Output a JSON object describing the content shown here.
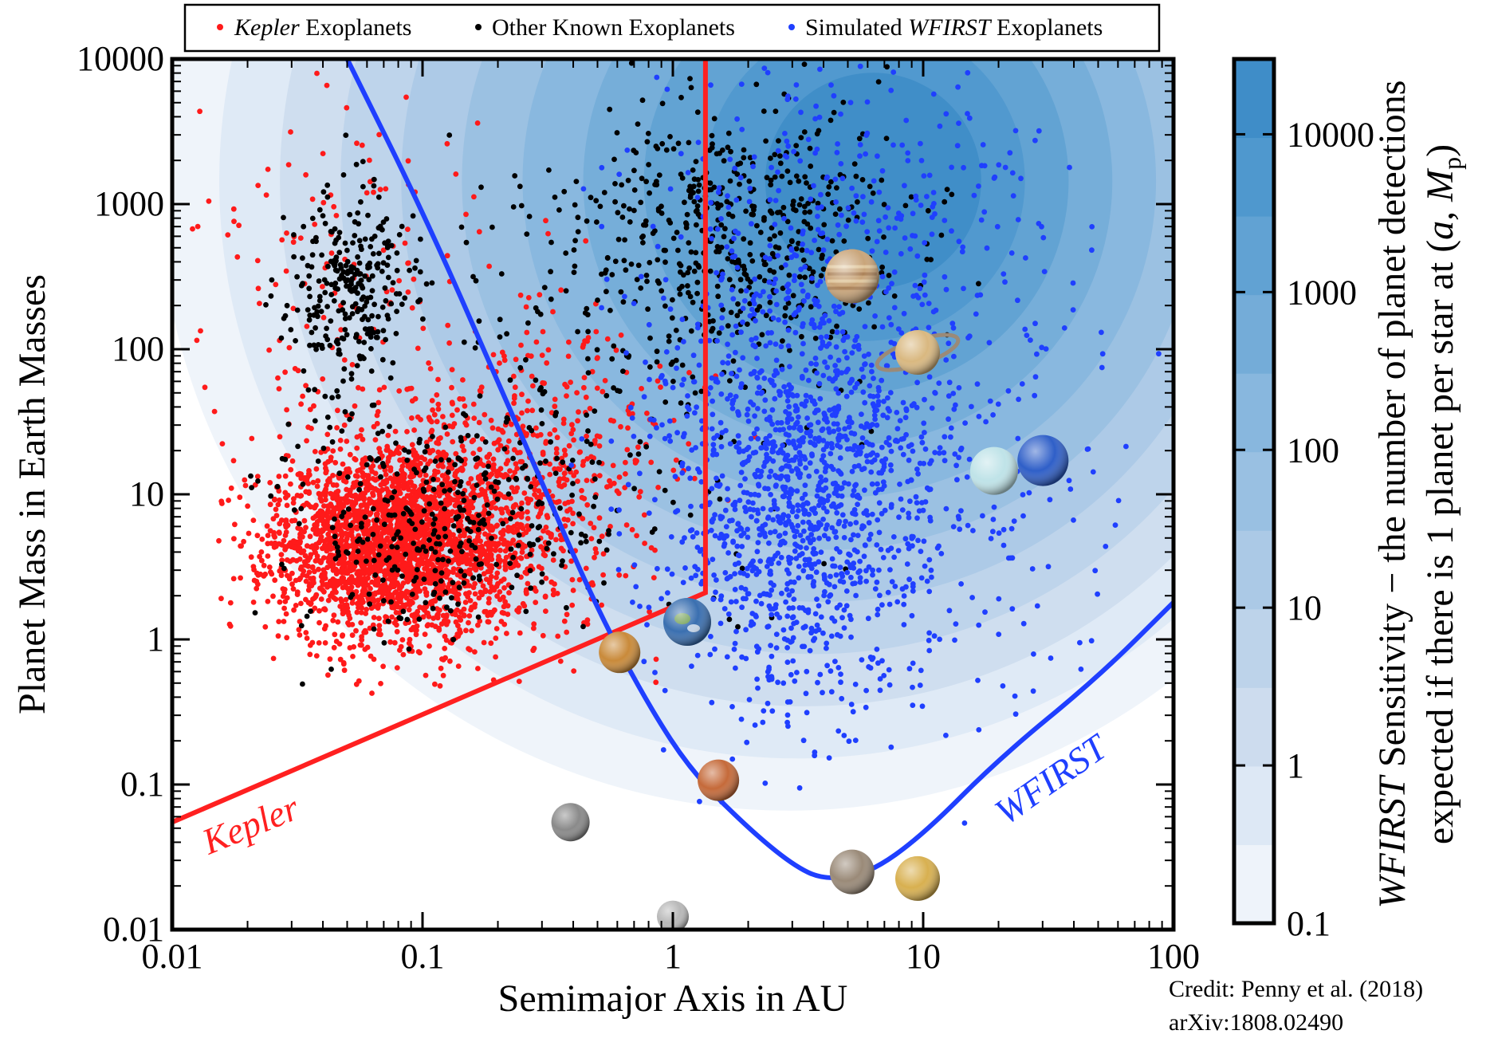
{
  "chart_data": {
    "type": "scatter",
    "title": "",
    "xlabel": "Semimajor Axis in AU",
    "ylabel": "Planet Mass in Earth Masses",
    "xscale": "log",
    "yscale": "log",
    "xlim": [
      0.01,
      100
    ],
    "ylim": [
      0.01,
      10000
    ],
    "xticks": [
      0.01,
      0.1,
      1,
      10,
      100
    ],
    "xtick_labels": [
      "0.01",
      "0.1",
      "1",
      "10",
      "100"
    ],
    "yticks": [
      0.01,
      0.1,
      1,
      10,
      100,
      1000,
      10000
    ],
    "ytick_labels": [
      "0.01",
      "0.1",
      "1",
      "10",
      "100",
      "1000",
      "10000"
    ],
    "legend": {
      "placement": "top",
      "entries": [
        {
          "italic": "Kepler",
          "text": " Exoplanets",
          "color": "#ff1a1a"
        },
        {
          "italic": "",
          "text": "Other Known Exoplanets",
          "color": "#000000"
        },
        {
          "prefix": "Simulated ",
          "italic": "WFIRST",
          "text": " Exoplanets",
          "color": "#1f3fff"
        }
      ]
    },
    "series": [
      {
        "name": "Kepler Exoplanets",
        "color": "#ff1a1a",
        "clusters": [
          {
            "center": [
              0.08,
              4.5
            ],
            "spread_dex": [
              0.25,
              0.32
            ],
            "count": 2600
          },
          {
            "center": [
              0.15,
              8
            ],
            "spread_dex": [
              0.3,
              0.45
            ],
            "count": 500
          },
          {
            "center": [
              0.35,
              25
            ],
            "spread_dex": [
              0.25,
              0.5
            ],
            "count": 220
          },
          {
            "center": [
              0.05,
              300
            ],
            "spread_dex": [
              0.3,
              0.6
            ],
            "count": 140
          }
        ],
        "seed": 11
      },
      {
        "name": "Other Known Exoplanets",
        "color": "#000000",
        "clusters": [
          {
            "center": [
              0.05,
              250
            ],
            "spread_dex": [
              0.12,
              0.35
            ],
            "count": 280
          },
          {
            "center": [
              1.6,
              600
            ],
            "spread_dex": [
              0.35,
              0.45
            ],
            "count": 520
          },
          {
            "center": [
              0.12,
              6
            ],
            "spread_dex": [
              0.3,
              0.4
            ],
            "count": 320
          },
          {
            "center": [
              0.6,
              40
            ],
            "spread_dex": [
              0.5,
              0.7
            ],
            "count": 150
          }
        ],
        "seed": 23
      },
      {
        "name": "Simulated WFIRST Exoplanets",
        "color": "#1f3fff",
        "clusters": [
          {
            "center": [
              3.2,
              12
            ],
            "spread_dex": [
              0.28,
              0.75
            ],
            "count": 1400
          },
          {
            "center": [
              5,
              800
            ],
            "spread_dex": [
              0.4,
              0.6
            ],
            "count": 300
          },
          {
            "center": [
              12,
              8
            ],
            "spread_dex": [
              0.4,
              0.9
            ],
            "count": 180
          }
        ],
        "seed": 37
      }
    ],
    "boundaries": [
      {
        "name": "Kepler",
        "label": "Kepler",
        "color": "#ff2020",
        "points": [
          [
            0.01,
            0.055
          ],
          [
            1.35,
            2.1
          ],
          [
            1.35,
            10000
          ]
        ]
      },
      {
        "name": "WFIRST",
        "label": "WFIRST",
        "color": "#1f3fff",
        "points": [
          [
            0.05,
            10000
          ],
          [
            0.1,
            900
          ],
          [
            0.2,
            60
          ],
          [
            0.3,
            12
          ],
          [
            0.5,
            1.6
          ],
          [
            0.8,
            0.35
          ],
          [
            1.2,
            0.12
          ],
          [
            2,
            0.05
          ],
          [
            3,
            0.028
          ],
          [
            4,
            0.022
          ],
          [
            6,
            0.024
          ],
          [
            10,
            0.045
          ],
          [
            20,
            0.15
          ],
          [
            50,
            0.55
          ],
          [
            100,
            1.8
          ]
        ]
      }
    ],
    "colorbar": {
      "label_italic": "WFIRST",
      "label_line1": " Sensitivity − the number of planet detections",
      "label_line2_prefix": "expected if there is 1 planet per star at (",
      "label_line2_vars": "a, M",
      "label_line2_sub": "p",
      "label_line2_suffix": ")",
      "range": [
        0.1,
        30000
      ],
      "ticks": [
        0.1,
        1,
        10,
        100,
        1000,
        10000
      ],
      "tick_labels": [
        "0.1",
        "1",
        "10",
        "100",
        "1000",
        "10000"
      ],
      "colors": [
        "#eef3fa",
        "#dde8f5",
        "#cddcee",
        "#bdd3ea",
        "#abc9e6",
        "#99c0e2",
        "#88b7de",
        "#74acd8",
        "#61a2d3",
        "#4f98ce",
        "#3f8dc8"
      ]
    },
    "solar_system": [
      {
        "name": "Mercury",
        "a": 0.39,
        "m": 0.055,
        "color": "#8a8a8a"
      },
      {
        "name": "Venus",
        "a": 0.72,
        "m": 0.815,
        "color": "#c98a3a"
      },
      {
        "name": "Earth",
        "a": 1.0,
        "m": 1.0,
        "color": "#3a6fb0"
      },
      {
        "name": "Moon",
        "a": 1.0,
        "m": 0.0123,
        "color": "#b8b8b8"
      },
      {
        "name": "Mars",
        "a": 1.52,
        "m": 0.107,
        "color": "#c56a3a"
      },
      {
        "name": "Ganymede",
        "a": 5.2,
        "m": 0.025,
        "color": "#9a8a78"
      },
      {
        "name": "Titan",
        "a": 9.5,
        "m": 0.0225,
        "color": "#d8b050"
      },
      {
        "name": "Jupiter",
        "a": 5.2,
        "m": 318,
        "color": "#c9a57a"
      },
      {
        "name": "Saturn",
        "a": 9.5,
        "m": 95,
        "color": "#d9b880"
      },
      {
        "name": "Uranus",
        "a": 19.2,
        "m": 14.5,
        "color": "#bfe3e8"
      },
      {
        "name": "Neptune",
        "a": 30.1,
        "m": 17.1,
        "color": "#2f5fc8"
      }
    ]
  },
  "credit": {
    "line1": "Credit: Penny et al. (2018)",
    "line2": "arXiv:1808.02490"
  }
}
